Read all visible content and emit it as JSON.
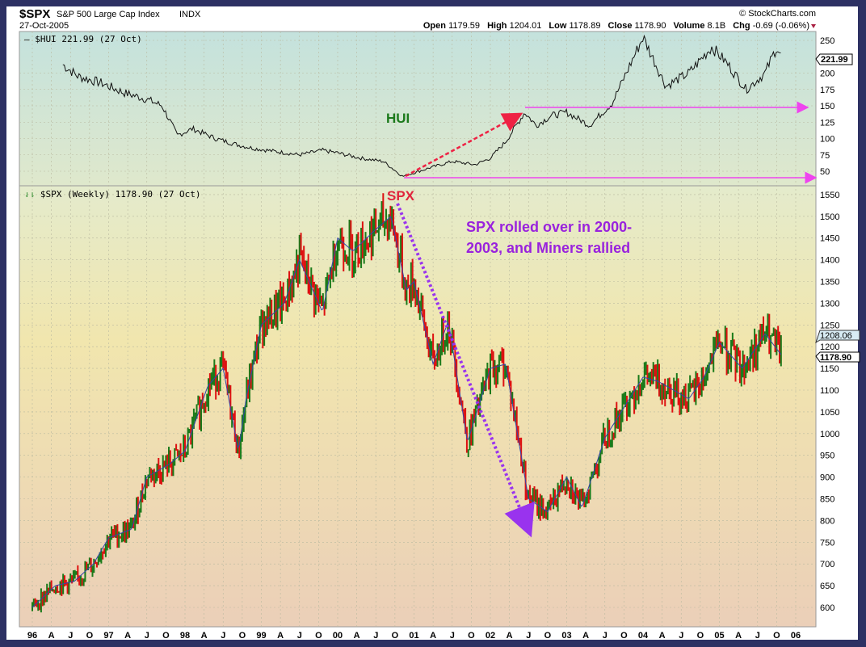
{
  "header": {
    "symbol": "$SPX",
    "name": "S&P 500 Large Cap Index",
    "exchange": "INDX",
    "date": "27-Oct-2005",
    "copyright": "© StockCharts.com",
    "open_label": "Open",
    "open": "1179.59",
    "high_label": "High",
    "high": "1204.01",
    "low_label": "Low",
    "low": "1178.89",
    "close_label": "Close",
    "close": "1178.90",
    "volume_label": "Volume",
    "volume": "8.1B",
    "chg_label": "Chg",
    "chg": "-0.69 (-0.06%)"
  },
  "colors": {
    "up": "#1a7a1a",
    "down": "#dd1111",
    "ma": "#3344aa",
    "arrow_magenta": "#ee44ee",
    "arrow_red": "#ee2244",
    "arrow_purple": "#9933ee",
    "frame": "#2d3163"
  },
  "chart_data": [
    {
      "type": "line",
      "title": "$HUI 221.99 (27 Oct)",
      "last_value_label": "221.99",
      "ylim": [
        30,
        260
      ],
      "yticks": [
        50,
        75,
        100,
        125,
        150,
        175,
        200,
        250
      ],
      "x": [
        1996.4,
        1996.6,
        1996.9,
        1997.2,
        1997.5,
        1997.7,
        1997.9,
        1998.1,
        1998.4,
        1998.7,
        1998.9,
        1999.2,
        1999.5,
        1999.8,
        2000.0,
        2000.3,
        2000.6,
        2000.85,
        2001.2,
        2001.5,
        2001.8,
        2002.0,
        2002.2,
        2002.45,
        2002.6,
        2002.8,
        2003.0,
        2003.3,
        2003.6,
        2003.9,
        2004.0,
        2004.3,
        2004.6,
        2004.9,
        2005.1,
        2005.35,
        2005.6,
        2005.75,
        2005.82
      ],
      "values": [
        213,
        195,
        185,
        170,
        160,
        150,
        105,
        115,
        100,
        90,
        85,
        80,
        75,
        82,
        78,
        70,
        65,
        42,
        55,
        65,
        60,
        70,
        95,
        140,
        120,
        135,
        140,
        120,
        155,
        230,
        255,
        180,
        200,
        240,
        215,
        175,
        200,
        240,
        222
      ],
      "annotations": {
        "label": "HUI",
        "hlines": [
          145,
          40
        ]
      }
    },
    {
      "type": "bar",
      "title": "$SPX (Weekly) 1178.90 (27 Oct)",
      "last_value_label": "1178.90",
      "ma_value_label": "1208.06",
      "ylim": [
        560,
        1570
      ],
      "yticks": [
        600,
        650,
        700,
        750,
        800,
        850,
        900,
        950,
        1000,
        1050,
        1100,
        1150,
        1200,
        1250,
        1300,
        1350,
        1400,
        1450,
        1500,
        1550
      ],
      "x": [
        1996.0,
        1996.3,
        1996.55,
        1996.8,
        1997.0,
        1997.3,
        1997.5,
        1997.8,
        1998.0,
        1998.3,
        1998.5,
        1998.7,
        1998.8,
        1999.0,
        1999.3,
        1999.5,
        1999.8,
        2000.0,
        2000.2,
        2000.5,
        2000.7,
        2000.9,
        2001.0,
        2001.25,
        2001.45,
        2001.7,
        2002.0,
        2002.2,
        2002.5,
        2002.75,
        2003.0,
        2003.2,
        2003.5,
        2004.0,
        2004.2,
        2004.6,
        2004.8,
        2005.0,
        2005.3,
        2005.6,
        2005.82
      ],
      "values": [
        600,
        650,
        660,
        700,
        760,
        780,
        900,
        930,
        960,
        1110,
        1150,
        960,
        1080,
        1250,
        1300,
        1400,
        1280,
        1450,
        1420,
        1470,
        1500,
        1330,
        1350,
        1160,
        1260,
        980,
        1150,
        1160,
        850,
        820,
        900,
        830,
        990,
        1130,
        1120,
        1080,
        1130,
        1210,
        1150,
        1230,
        1179
      ],
      "annotations": {
        "label": "SPX",
        "note_line1": "SPX rolled over in 2000-",
        "note_line2": "2003, and Miners rallied"
      }
    }
  ],
  "x_axis": {
    "labels": [
      "96",
      "A",
      "J",
      "O",
      "97",
      "A",
      "J",
      "O",
      "98",
      "A",
      "J",
      "O",
      "99",
      "A",
      "J",
      "O",
      "00",
      "A",
      "J",
      "O",
      "01",
      "A",
      "J",
      "O",
      "02",
      "A",
      "J",
      "O",
      "03",
      "A",
      "J",
      "O",
      "04",
      "A",
      "J",
      "O",
      "05",
      "A",
      "J",
      "O",
      "06"
    ]
  }
}
